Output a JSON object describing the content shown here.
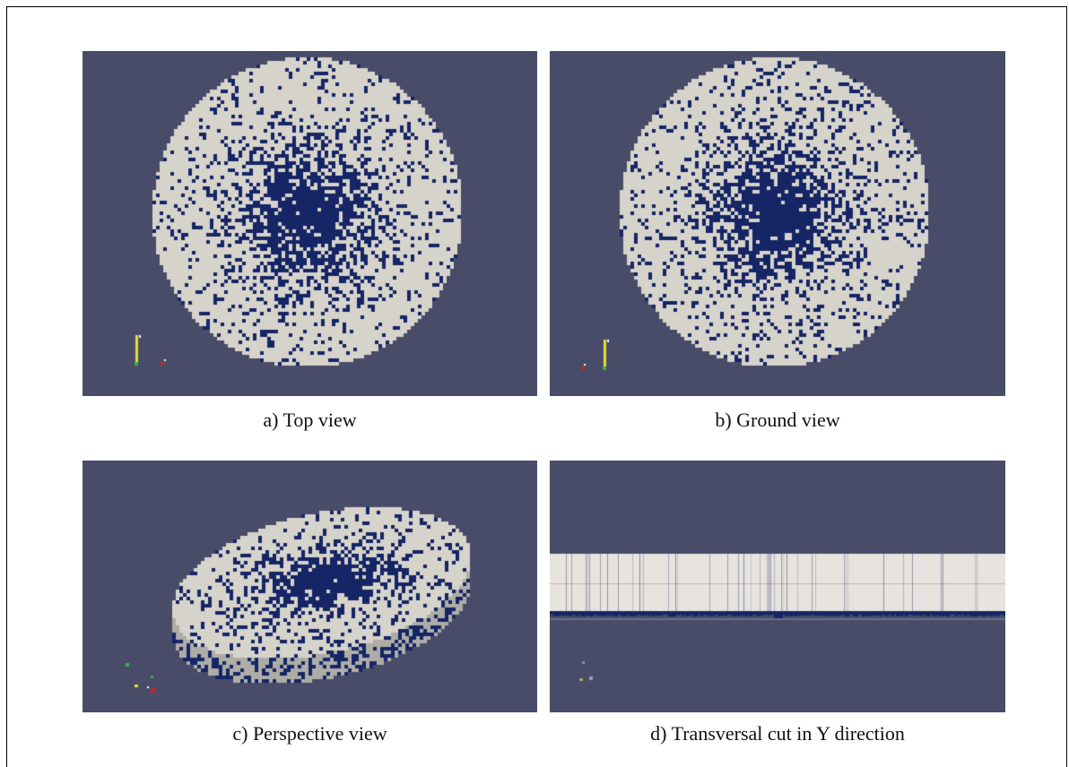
{
  "figure": {
    "panels": [
      {
        "id": "a",
        "caption": "a) Top view"
      },
      {
        "id": "b",
        "caption": "b) Ground view"
      },
      {
        "id": "c",
        "caption": "c) Perspective view"
      },
      {
        "id": "d",
        "caption": "d) Transversal cut in Y direction"
      }
    ],
    "colors": {
      "background": "#484c68",
      "solid": "#d6d3cb",
      "void": "#152565",
      "axis_yellow": "#e5de2c",
      "axis_red": "#c62626",
      "axis_green": "#3bb14a"
    }
  }
}
